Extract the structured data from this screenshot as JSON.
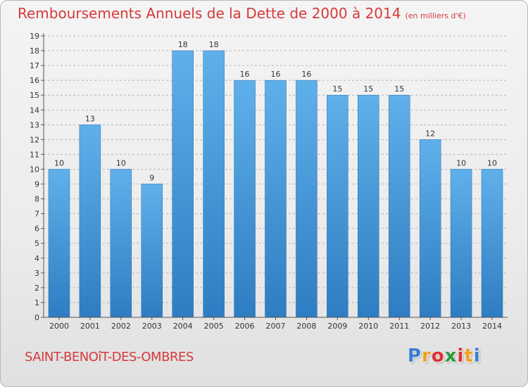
{
  "header": {
    "title": "Remboursements Annuels de la Dette de 2000 à 2014",
    "subtitle": "(en milliers d'€)"
  },
  "footer": {
    "town": "SAINT-BENOîT-DES-OMBRES",
    "logo_letters": [
      "P",
      "r",
      "o",
      "x",
      "i",
      "t",
      "i"
    ],
    "logo_colors": [
      "#3a7fd0",
      "#f0a020",
      "#e03030",
      "#2a9a3a",
      "#e03030",
      "#f0a020",
      "#3a7fd0"
    ]
  },
  "colors": {
    "bar_light": "#5fb0ea",
    "bar_dark": "#2e7dc2",
    "title": "#d63a3a",
    "grid": "#b5b5b5"
  },
  "chart_data": {
    "type": "bar",
    "title": "Remboursements Annuels de la Dette de 2000 à 2014",
    "ylabel": "en milliers d'€",
    "xlabel": "",
    "ylim": [
      0,
      19
    ],
    "yticks": [
      0,
      1,
      2,
      3,
      4,
      5,
      6,
      7,
      8,
      9,
      10,
      11,
      12,
      13,
      14,
      15,
      16,
      17,
      18,
      19
    ],
    "grid": "horizontal dashed",
    "categories": [
      "2000",
      "2001",
      "2002",
      "2003",
      "2004",
      "2005",
      "2006",
      "2007",
      "2008",
      "2009",
      "2010",
      "2011",
      "2012",
      "2013",
      "2014"
    ],
    "values": [
      10,
      13,
      10,
      9,
      18,
      18,
      16,
      16,
      16,
      15,
      15,
      15,
      12,
      10,
      10
    ]
  }
}
